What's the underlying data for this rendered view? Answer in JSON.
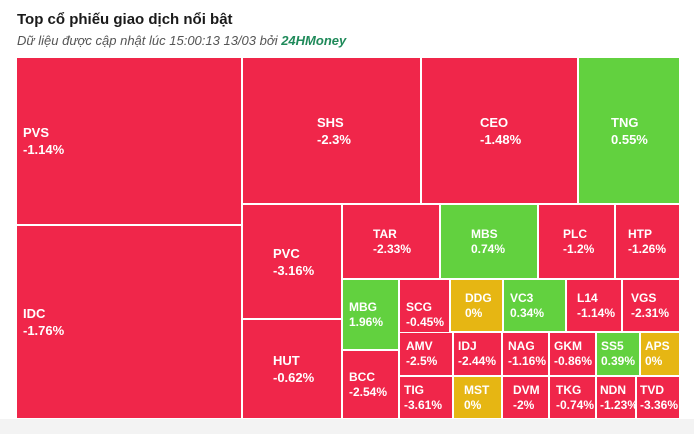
{
  "header": {
    "title": "Top cổ phiếu giao dịch nổi bật",
    "subtitle_prefix": "Dữ liệu được cập nhật lúc 15:00:13 13/03 bởi",
    "brand": "24HMoney"
  },
  "colors": {
    "down": "#f0264a",
    "up": "#62d13f",
    "flat": "#e6b613"
  },
  "tiles": [
    {
      "ticker": "PVS",
      "change": "-1.14%",
      "trend": "down"
    },
    {
      "ticker": "IDC",
      "change": "-1.76%",
      "trend": "down"
    },
    {
      "ticker": "SHS",
      "change": "-2.3%",
      "trend": "down"
    },
    {
      "ticker": "CEO",
      "change": "-1.48%",
      "trend": "down"
    },
    {
      "ticker": "TNG",
      "change": "0.55%",
      "trend": "up"
    },
    {
      "ticker": "PVC",
      "change": "-3.16%",
      "trend": "down"
    },
    {
      "ticker": "HUT",
      "change": "-0.62%",
      "trend": "down"
    },
    {
      "ticker": "TAR",
      "change": "-2.33%",
      "trend": "down"
    },
    {
      "ticker": "MBS",
      "change": "0.74%",
      "trend": "up"
    },
    {
      "ticker": "PLC",
      "change": "-1.2%",
      "trend": "down"
    },
    {
      "ticker": "HTP",
      "change": "-1.26%",
      "trend": "down"
    },
    {
      "ticker": "MBG",
      "change": "1.96%",
      "trend": "up"
    },
    {
      "ticker": "SCG",
      "change": "-0.45%",
      "trend": "down"
    },
    {
      "ticker": "DDG",
      "change": "0%",
      "trend": "flat"
    },
    {
      "ticker": "VC3",
      "change": "0.34%",
      "trend": "up"
    },
    {
      "ticker": "L14",
      "change": "-1.14%",
      "trend": "down"
    },
    {
      "ticker": "VGS",
      "change": "-2.31%",
      "trend": "down"
    },
    {
      "ticker": "BCC",
      "change": "-2.54%",
      "trend": "down"
    },
    {
      "ticker": "AMV",
      "change": "-2.5%",
      "trend": "down"
    },
    {
      "ticker": "IDJ",
      "change": "-2.44%",
      "trend": "down"
    },
    {
      "ticker": "NAG",
      "change": "-1.16%",
      "trend": "down"
    },
    {
      "ticker": "GKM",
      "change": "-0.86%",
      "trend": "down"
    },
    {
      "ticker": "SS5",
      "change": "0.39%",
      "trend": "up"
    },
    {
      "ticker": "APS",
      "change": "0%",
      "trend": "flat"
    },
    {
      "ticker": "TIG",
      "change": "-3.61%",
      "trend": "down"
    },
    {
      "ticker": "MST",
      "change": "0%",
      "trend": "flat"
    },
    {
      "ticker": "DVM",
      "change": "-2%",
      "trend": "down"
    },
    {
      "ticker": "TKG",
      "change": "-0.74%",
      "trend": "down"
    },
    {
      "ticker": "NDN",
      "change": "-1.23%",
      "trend": "down"
    },
    {
      "ticker": "TVD",
      "change": "-3.36%",
      "trend": "down"
    }
  ]
}
